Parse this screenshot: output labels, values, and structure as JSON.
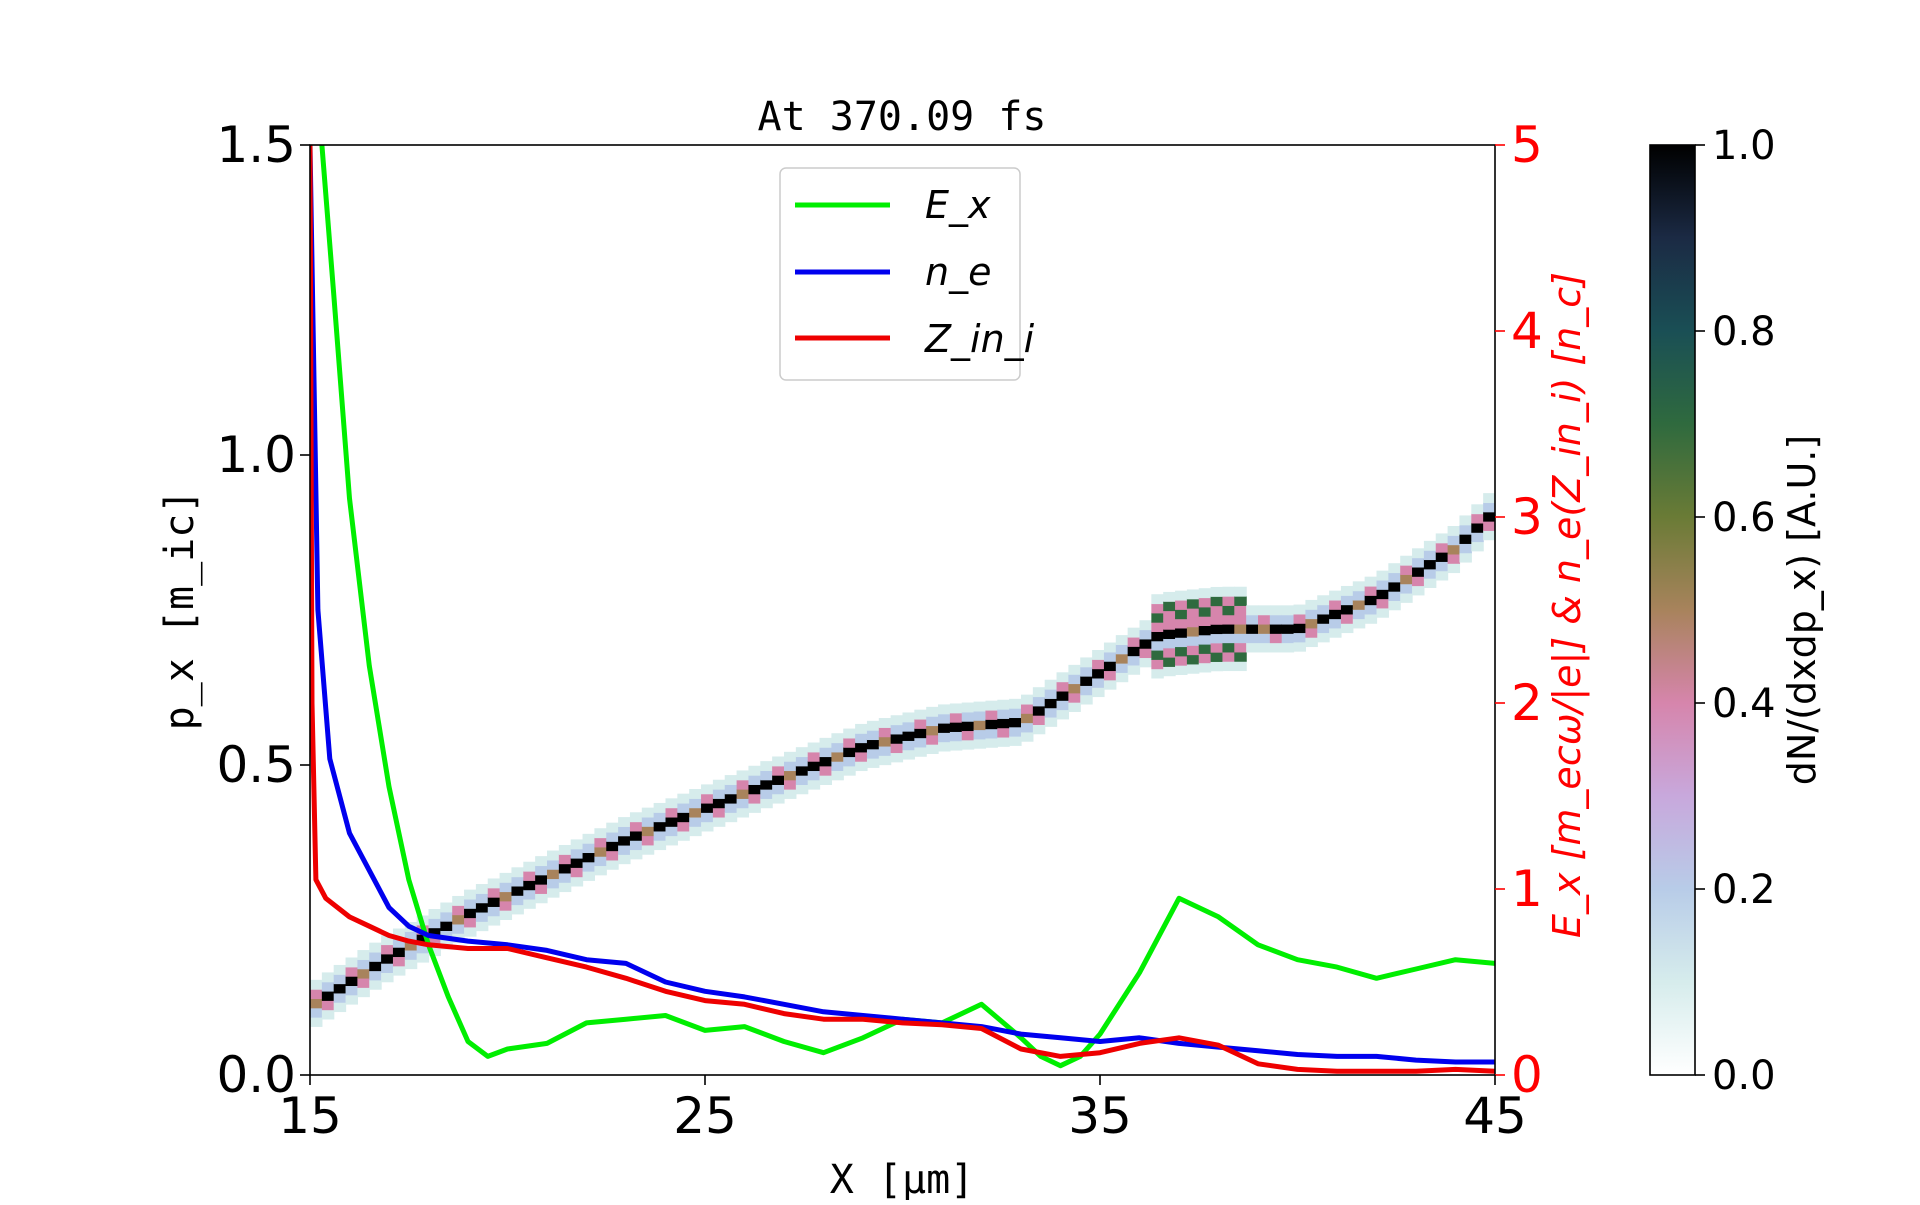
{
  "chart_data": {
    "type": "heatmap",
    "title": "At 370.09 fs",
    "xlabel": "X [μm]",
    "ylabel": "p_x [m_ic]",
    "ylabel2": "E_x [m_ecω/|e|] & n_e(Z_in_i) [n_c]",
    "colorbar_label": "dN/(dxdp_x) [A.U.]",
    "xlim": [
      15,
      45
    ],
    "ylim": [
      0,
      1.5
    ],
    "y2lim": [
      0,
      5
    ],
    "clim": [
      0,
      1
    ],
    "x_ticks": [
      "15",
      "25",
      "35",
      "45"
    ],
    "y_ticks": [
      "0.0",
      "0.5",
      "1.0",
      "1.5"
    ],
    "y2_ticks": [
      "0",
      "1",
      "2",
      "3",
      "4",
      "5"
    ],
    "colorbar_ticks": [
      "0.0",
      "0.2",
      "0.4",
      "0.6",
      "0.8",
      "1.0"
    ],
    "legend_position": "top-center",
    "colors": {
      "Ex": "#00ee00",
      "ne": "#0000ee",
      "Zini": "#ee0000",
      "right_axis": "#ff0000"
    },
    "phase_space_ridge": [
      {
        "x": 15.0,
        "px": 0.11
      },
      {
        "x": 17.0,
        "px": 0.19
      },
      {
        "x": 19.0,
        "px": 0.26
      },
      {
        "x": 21.0,
        "px": 0.32
      },
      {
        "x": 23.0,
        "px": 0.38
      },
      {
        "x": 25.0,
        "px": 0.43
      },
      {
        "x": 27.0,
        "px": 0.48
      },
      {
        "x": 29.0,
        "px": 0.53
      },
      {
        "x": 31.0,
        "px": 0.56
      },
      {
        "x": 33.0,
        "px": 0.57
      },
      {
        "x": 35.0,
        "px": 0.65
      },
      {
        "x": 36.5,
        "px": 0.71
      },
      {
        "x": 38.0,
        "px": 0.72
      },
      {
        "x": 40.0,
        "px": 0.72
      },
      {
        "x": 42.0,
        "px": 0.77
      },
      {
        "x": 44.0,
        "px": 0.85
      },
      {
        "x": 45.0,
        "px": 0.91
      }
    ],
    "series": [
      {
        "name": "E_x",
        "axis": "right",
        "x": [
          15.3,
          15.6,
          16.0,
          16.5,
          17.0,
          17.5,
          18.0,
          18.5,
          19.0,
          19.5,
          20.0,
          21.0,
          22.0,
          23.0,
          24.0,
          25.0,
          26.0,
          27.0,
          28.0,
          29.0,
          30.0,
          31.0,
          32.0,
          33.0,
          33.5,
          34.0,
          34.5,
          35.0,
          36.0,
          37.0,
          38.0,
          39.0,
          40.0,
          41.0,
          42.0,
          43.0,
          44.0,
          45.0
        ],
        "y": [
          5.0,
          4.2,
          3.1,
          2.2,
          1.55,
          1.05,
          0.7,
          0.42,
          0.18,
          0.1,
          0.14,
          0.17,
          0.28,
          0.3,
          0.32,
          0.24,
          0.26,
          0.18,
          0.12,
          0.2,
          0.3,
          0.28,
          0.38,
          0.2,
          0.1,
          0.05,
          0.1,
          0.22,
          0.55,
          0.95,
          0.85,
          0.7,
          0.62,
          0.58,
          0.52,
          0.57,
          0.62,
          0.6
        ]
      },
      {
        "name": "n_e",
        "axis": "right",
        "x": [
          15.0,
          15.2,
          15.5,
          16.0,
          16.5,
          17.0,
          17.5,
          18.0,
          19.0,
          20.0,
          21.0,
          22.0,
          23.0,
          24.0,
          25.0,
          26.0,
          27.0,
          28.0,
          29.0,
          30.0,
          31.0,
          32.0,
          33.0,
          34.0,
          35.0,
          36.0,
          37.0,
          38.0,
          39.0,
          40.0,
          41.0,
          42.0,
          43.0,
          44.0,
          45.0
        ],
        "y": [
          5.0,
          2.5,
          1.7,
          1.3,
          1.1,
          0.9,
          0.8,
          0.75,
          0.72,
          0.7,
          0.67,
          0.62,
          0.6,
          0.5,
          0.45,
          0.42,
          0.38,
          0.34,
          0.32,
          0.3,
          0.28,
          0.26,
          0.22,
          0.2,
          0.18,
          0.2,
          0.17,
          0.15,
          0.13,
          0.11,
          0.1,
          0.1,
          0.08,
          0.07,
          0.07
        ]
      },
      {
        "name": "Z_in_i",
        "axis": "right",
        "x": [
          15.0,
          15.05,
          15.15,
          15.4,
          16.0,
          16.5,
          17.0,
          17.5,
          18.0,
          19.0,
          20.0,
          21.0,
          22.0,
          23.0,
          24.0,
          25.0,
          26.0,
          27.0,
          28.0,
          29.0,
          30.0,
          31.0,
          32.0,
          33.0,
          34.0,
          35.0,
          36.0,
          37.0,
          38.0,
          39.0,
          40.0,
          41.0,
          42.0,
          43.0,
          44.0,
          45.0
        ],
        "y": [
          5.0,
          2.0,
          1.05,
          0.95,
          0.85,
          0.8,
          0.75,
          0.72,
          0.7,
          0.68,
          0.68,
          0.63,
          0.58,
          0.52,
          0.45,
          0.4,
          0.38,
          0.33,
          0.3,
          0.3,
          0.28,
          0.27,
          0.25,
          0.14,
          0.1,
          0.12,
          0.17,
          0.2,
          0.16,
          0.06,
          0.03,
          0.02,
          0.02,
          0.02,
          0.03,
          0.02
        ]
      }
    ]
  }
}
